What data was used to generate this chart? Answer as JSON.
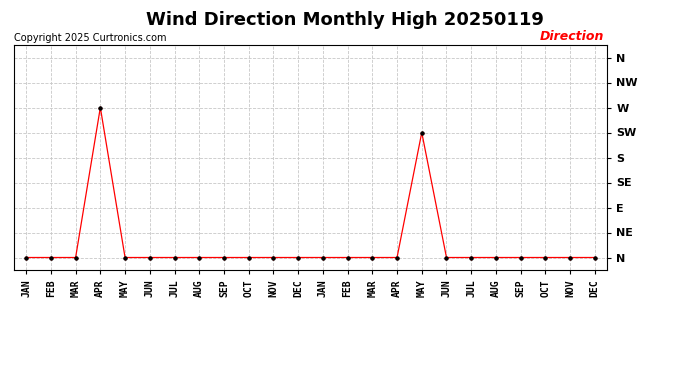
{
  "title": "Wind Direction Monthly High 20250119",
  "copyright": "Copyright 2025 Curtronics.com",
  "legend_label": "Direction",
  "legend_color": "#ff0000",
  "line_color": "#ff0000",
  "marker_color": "#000000",
  "background_color": "#ffffff",
  "grid_color": "#c8c8c8",
  "months": [
    "JAN",
    "FEB",
    "MAR",
    "APR",
    "MAY",
    "JUN",
    "JUL",
    "AUG",
    "SEP",
    "OCT",
    "NOV",
    "DEC",
    "JAN",
    "FEB",
    "MAR",
    "APR",
    "MAY",
    "JUN",
    "JUL",
    "AUG",
    "SEP",
    "OCT",
    "NOV",
    "DEC"
  ],
  "y_tick_labels": [
    "N",
    "NE",
    "E",
    "SE",
    "S",
    "SW",
    "W",
    "NW",
    "N"
  ],
  "y_tick_values": [
    0,
    1,
    2,
    3,
    4,
    5,
    6,
    7,
    8
  ],
  "values": [
    0,
    0,
    0,
    6,
    0,
    0,
    0,
    0,
    0,
    0,
    0,
    0,
    0,
    0,
    0,
    0,
    5,
    0,
    0,
    0,
    0,
    0,
    0,
    0
  ],
  "title_fontsize": 13,
  "tick_fontsize": 7,
  "copyright_fontsize": 7,
  "legend_fontsize": 9
}
